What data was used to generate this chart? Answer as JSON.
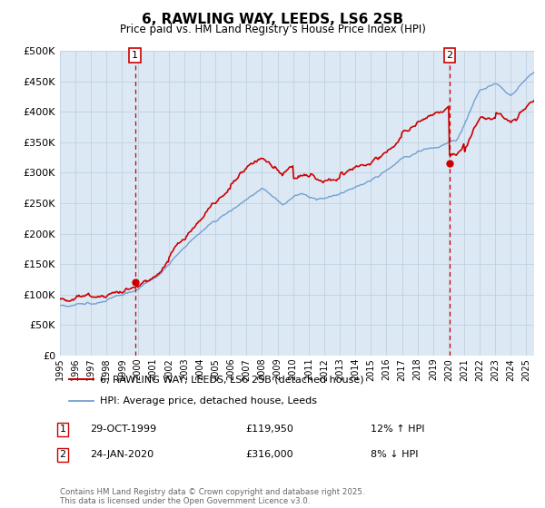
{
  "title": "6, RAWLING WAY, LEEDS, LS6 2SB",
  "subtitle": "Price paid vs. HM Land Registry's House Price Index (HPI)",
  "legend_line1": "6, RAWLING WAY, LEEDS, LS6 2SB (detached house)",
  "legend_line2": "HPI: Average price, detached house, Leeds",
  "transaction1_label": "1",
  "transaction1_date": "29-OCT-1999",
  "transaction1_price": "£119,950",
  "transaction1_hpi": "12% ↑ HPI",
  "transaction2_label": "2",
  "transaction2_date": "24-JAN-2020",
  "transaction2_price": "£316,000",
  "transaction2_hpi": "8% ↓ HPI",
  "footer": "Contains HM Land Registry data © Crown copyright and database right 2025.\nThis data is licensed under the Open Government Licence v3.0.",
  "price_line_color": "#cc0000",
  "hpi_line_color": "#6699cc",
  "vline_color": "#cc0000",
  "ylim": [
    0,
    500000
  ],
  "yticks": [
    0,
    50000,
    100000,
    150000,
    200000,
    250000,
    300000,
    350000,
    400000,
    450000,
    500000
  ],
  "background_color": "#ffffff",
  "plot_background": "#dce9f5",
  "grid_color": "#c0d0e0"
}
